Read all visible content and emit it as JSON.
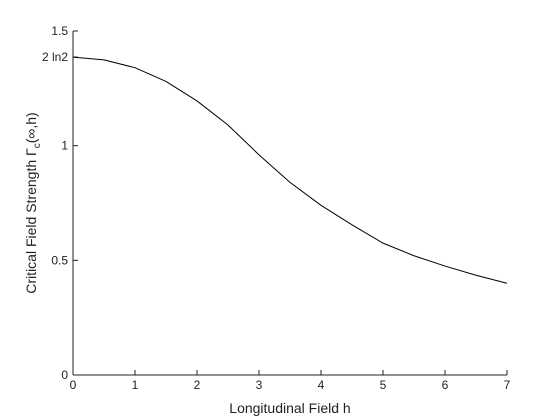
{
  "chart_data": {
    "type": "line",
    "xlabel": "Longitudinal Field h",
    "ylabel": [
      "Critical Field Strength Γ",
      "c",
      "(∞,h)"
    ],
    "x": [
      0,
      0.5,
      1,
      1.5,
      2,
      2.5,
      3,
      3.5,
      4,
      4.5,
      5,
      5.5,
      6,
      6.5,
      7
    ],
    "values": [
      1.386,
      1.374,
      1.34,
      1.28,
      1.195,
      1.09,
      0.96,
      0.84,
      0.74,
      0.655,
      0.575,
      0.52,
      0.475,
      0.435,
      0.4
    ],
    "color": "#000000",
    "xlim": [
      0,
      7
    ],
    "xticks": [
      0,
      1,
      2,
      3,
      4,
      5,
      6,
      7
    ],
    "ylim": [
      0,
      1.5
    ],
    "yticks": [
      0,
      0.5,
      1,
      {
        "value": 1.3863,
        "label": "2 ln2"
      },
      1.5
    ]
  }
}
